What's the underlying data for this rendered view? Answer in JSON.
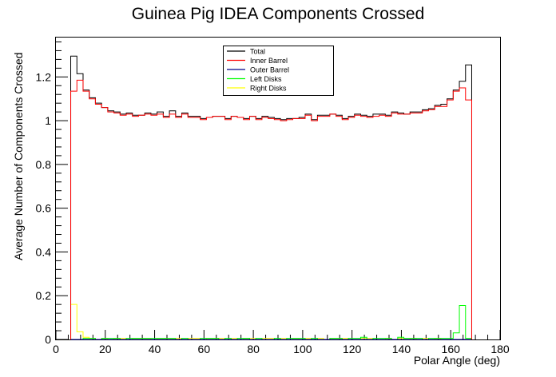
{
  "chart_data": {
    "type": "line",
    "title": "Guinea Pig IDEA Components Crossed",
    "xlabel": "Polar Angle (deg)",
    "ylabel": "Average Number of Components Crossed",
    "xlim": [
      0,
      180
    ],
    "ylim": [
      0,
      1.38
    ],
    "xticks": [
      0,
      20,
      40,
      60,
      80,
      100,
      120,
      140,
      160,
      180
    ],
    "yticks": [
      0,
      0.2,
      0.4,
      0.6,
      0.8,
      1,
      1.2
    ],
    "ytick_labels": [
      "0",
      "0.2",
      "0.4",
      "0.6",
      "0.8",
      "1",
      "1.2"
    ],
    "bin_width": 2.5,
    "bin_start": 6,
    "legend_position": "top-center",
    "grid": false,
    "series": [
      {
        "name": "Total",
        "color": "#000000",
        "values": [
          1.295,
          1.215,
          1.14,
          1.105,
          1.08,
          1.06,
          1.045,
          1.04,
          1.03,
          1.035,
          1.025,
          1.025,
          1.035,
          1.03,
          1.04,
          1.02,
          1.045,
          1.02,
          1.035,
          1.02,
          1.02,
          1.01,
          1.015,
          1.02,
          1.02,
          1.01,
          1.02,
          1.015,
          1.01,
          1.02,
          1.01,
          1.02,
          1.015,
          1.01,
          1.005,
          1.01,
          1.01,
          1.015,
          1.03,
          1.005,
          1.025,
          1.025,
          1.03,
          1.025,
          1.01,
          1.02,
          1.03,
          1.025,
          1.02,
          1.03,
          1.03,
          1.025,
          1.04,
          1.035,
          1.03,
          1.04,
          1.04,
          1.05,
          1.055,
          1.07,
          1.075,
          1.1,
          1.14,
          1.18,
          1.255
        ]
      },
      {
        "name": "Inner Barrel",
        "color": "#ff0000",
        "values": [
          1.135,
          1.185,
          1.135,
          1.1,
          1.075,
          1.06,
          1.04,
          1.035,
          1.025,
          1.03,
          1.02,
          1.025,
          1.03,
          1.025,
          1.03,
          1.015,
          1.03,
          1.015,
          1.03,
          1.015,
          1.015,
          1.005,
          1.015,
          1.02,
          1.02,
          1.005,
          1.02,
          1.015,
          1.005,
          1.02,
          1.005,
          1.015,
          1.01,
          1.005,
          1.0,
          1.005,
          1.01,
          1.01,
          1.025,
          1.0,
          1.02,
          1.02,
          1.03,
          1.02,
          1.005,
          1.015,
          1.025,
          1.02,
          1.015,
          1.02,
          1.025,
          1.02,
          1.035,
          1.03,
          1.03,
          1.035,
          1.035,
          1.045,
          1.05,
          1.065,
          1.065,
          1.095,
          1.135,
          1.15,
          1.095
        ]
      },
      {
        "name": "Outer Barrel",
        "color": "#00008b",
        "values": [
          0,
          0,
          0,
          0,
          0,
          0,
          0,
          0,
          0,
          0,
          0,
          0,
          0,
          0,
          0,
          0,
          0,
          0,
          0,
          0,
          0,
          0,
          0,
          0,
          0,
          0,
          0,
          0,
          0,
          0,
          0,
          0,
          0,
          0,
          0,
          0,
          0,
          0,
          0,
          0,
          0,
          0,
          0,
          0,
          0,
          0,
          0,
          0,
          0,
          0,
          0,
          0,
          0,
          0,
          0,
          0,
          0,
          0,
          0,
          0,
          0,
          0,
          0,
          0,
          0
        ]
      },
      {
        "name": "Left Disks",
        "color": "#00ff00",
        "values": [
          0,
          0,
          0.005,
          0.005,
          0,
          0.005,
          0.005,
          0.005,
          0,
          0.005,
          0.005,
          0.005,
          0.005,
          0.005,
          0.005,
          0.005,
          0.005,
          0,
          0.005,
          0,
          0,
          0.005,
          0.005,
          0.005,
          0,
          0.005,
          0,
          0.005,
          0.005,
          0,
          0.005,
          0,
          0,
          0.005,
          0,
          0.005,
          0.005,
          0.005,
          0,
          0.005,
          0,
          0,
          0.005,
          0.005,
          0,
          0.005,
          0.005,
          0.01,
          0,
          0.005,
          0.005,
          0.005,
          0,
          0.01,
          0.005,
          0.005,
          0.005,
          0,
          0.005,
          0.005,
          0.005,
          0.005,
          0.03,
          0.155,
          0.005
        ]
      },
      {
        "name": "Right Disks",
        "color": "#ffff00",
        "values": [
          0.16,
          0.035,
          0.01,
          0.005,
          0,
          0.005,
          0,
          0.005,
          0.005,
          0,
          0.005,
          0.005,
          0.005,
          0,
          0.005,
          0.005,
          0.005,
          0.005,
          0,
          0.005,
          0.005,
          0,
          0.005,
          0.005,
          0.005,
          0,
          0.005,
          0,
          0.005,
          0.005,
          0,
          0.005,
          0.005,
          0,
          0.005,
          0,
          0.005,
          0,
          0.005,
          0,
          0.005,
          0,
          0.005,
          0.005,
          0.005,
          0,
          0,
          0.005,
          0.005,
          0,
          0,
          0.005,
          0,
          0.005,
          0,
          0.005,
          0,
          0.005,
          0,
          0.005,
          0,
          0,
          0,
          0,
          0
        ]
      }
    ]
  }
}
